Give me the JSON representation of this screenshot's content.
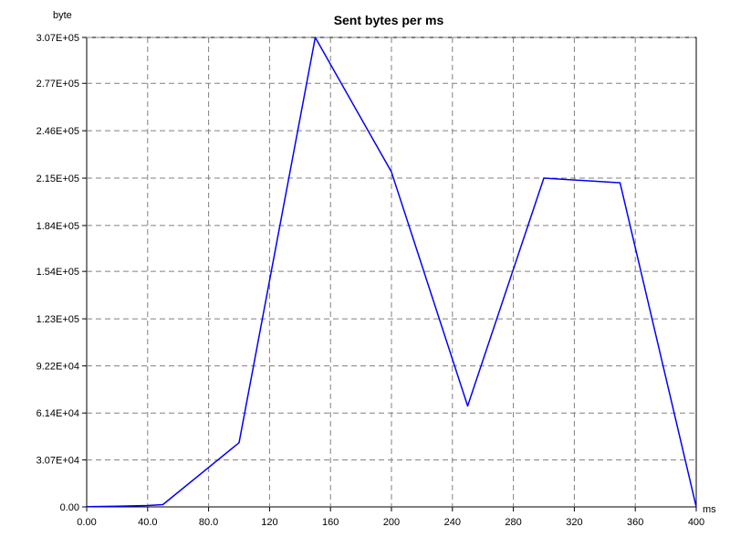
{
  "chart_data": {
    "type": "line",
    "title": "Sent bytes per ms",
    "xlabel": "ms",
    "ylabel": "byte",
    "grid": true,
    "xlim": [
      0,
      400
    ],
    "ylim": [
      0,
      307000
    ],
    "x_ticks": [
      0,
      40,
      80,
      120,
      160,
      200,
      240,
      280,
      320,
      360,
      400
    ],
    "x_tick_labels": [
      "0.00",
      "40.0",
      "80.0",
      "120",
      "160",
      "200",
      "240",
      "280",
      "320",
      "360",
      "400"
    ],
    "y_ticks": [
      0,
      30700,
      61400,
      92200,
      123000,
      154000,
      184000,
      215000,
      246000,
      277000,
      307000
    ],
    "y_tick_labels": [
      "0.00",
      "3.07E+04",
      "6.14E+04",
      "9.22E+04",
      "1.23E+05",
      "1.54E+05",
      "1.84E+05",
      "2.15E+05",
      "2.46E+05",
      "2.77E+05",
      "3.07E+05"
    ],
    "series": [
      {
        "color": "#0000ff",
        "x": [
          0,
          20,
          40,
          50,
          100,
          150,
          200,
          250,
          300,
          350,
          400
        ],
        "y": [
          200,
          500,
          900,
          1500,
          42000,
          307000,
          219000,
          66000,
          215000,
          212000,
          0
        ]
      }
    ]
  }
}
